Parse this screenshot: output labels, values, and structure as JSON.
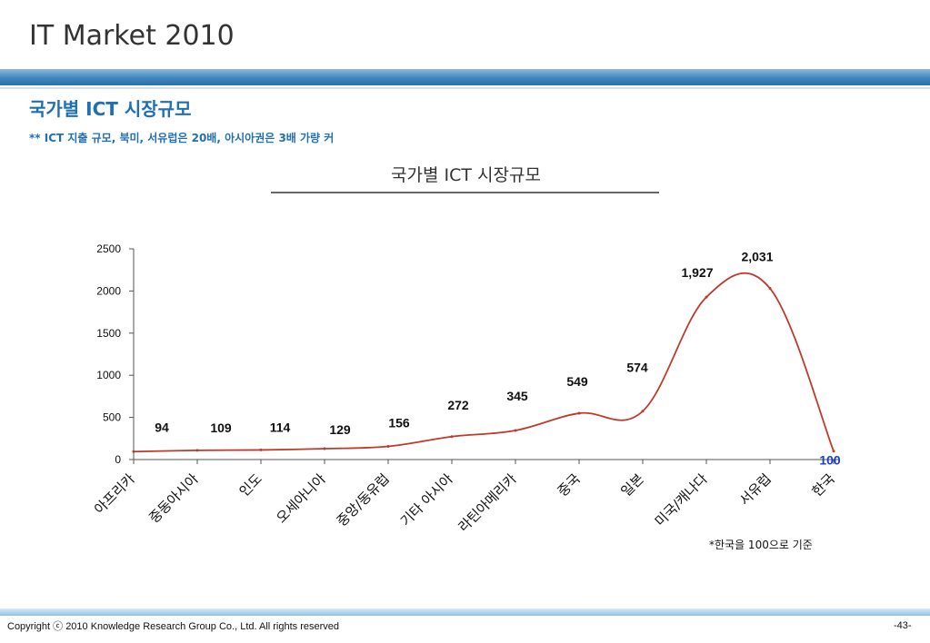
{
  "page": {
    "title": "IT Market 2010",
    "subtitle": "국가별 ICT 시장규모",
    "note": "** ICT 지출 규모, 북미, 서유럽은 20배, 아시아권은 3배 가량 커",
    "footnote": "*한국을 100으로 기준",
    "copyright": "Copyright ⓒ 2010 Knowledge Research Group Co., Ltd. All rights reserved",
    "page_number": "-43-"
  },
  "colors": {
    "line": "#c0392b",
    "accent": "#1f6fb5",
    "highlight_label": "#1a3fc9"
  },
  "chart_data": {
    "type": "line",
    "title": "국가별 ICT 시장규모",
    "xlabel": "",
    "ylabel": "",
    "ylim": [
      0,
      2500
    ],
    "yticks": [
      0,
      500,
      1000,
      1500,
      2000,
      2500
    ],
    "categories": [
      "아프리카",
      "중동아시아",
      "인도",
      "오세아니아",
      "중앙/동유럽",
      "기타 아시아",
      "라틴아메리카",
      "중국",
      "일본",
      "미국/캐나다",
      "서유럽",
      "한국"
    ],
    "values": [
      94,
      109,
      114,
      129,
      156,
      272,
      345,
      549,
      574,
      1927,
      2031,
      100
    ],
    "data_labels": [
      "94",
      "109",
      "114",
      "129",
      "156",
      "272",
      "345",
      "549",
      "574",
      "1,927",
      "2,031",
      "100"
    ],
    "highlight_index": 11,
    "grid": false,
    "legend": "none"
  }
}
